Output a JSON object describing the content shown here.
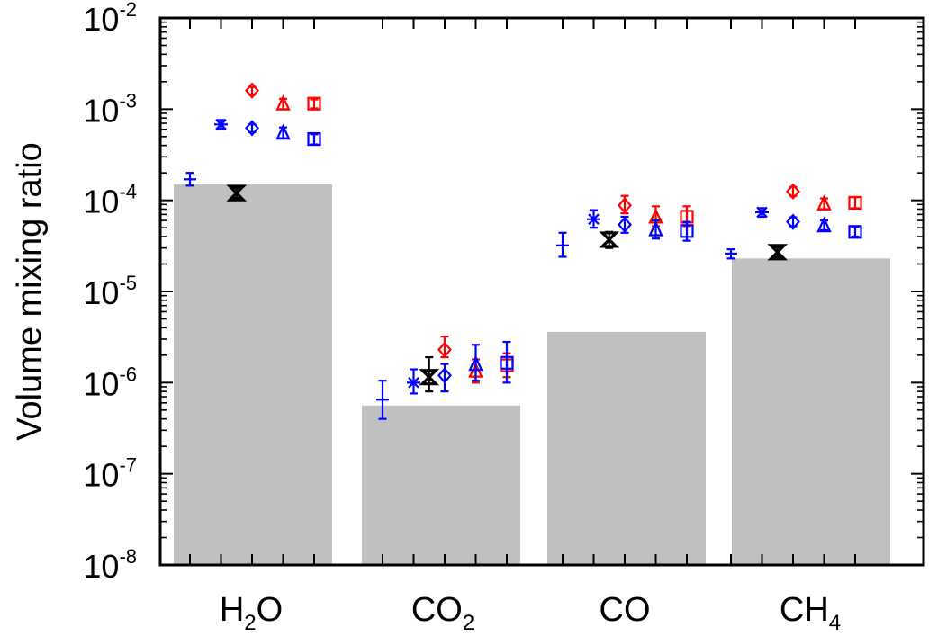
{
  "chart_data": {
    "type": "bar",
    "ylabel": "Volume mixing ratio",
    "yscale": "log",
    "ylim": [
      1e-08,
      0.01
    ],
    "y_ticks": [
      {
        "base": "10",
        "exp": "-8",
        "value": 1e-08
      },
      {
        "base": "10",
        "exp": "-7",
        "value": 1e-07
      },
      {
        "base": "10",
        "exp": "-6",
        "value": 1e-06
      },
      {
        "base": "10",
        "exp": "-5",
        "value": 1e-05
      },
      {
        "base": "10",
        "exp": "-4",
        "value": 0.0001
      },
      {
        "base": "10",
        "exp": "-3",
        "value": 0.001
      },
      {
        "base": "10",
        "exp": "-2",
        "value": 0.01
      }
    ],
    "categories": [
      {
        "name": "H2O",
        "main": "H",
        "sub": "2",
        "tail": "O"
      },
      {
        "name": "CO2",
        "main": "CO",
        "sub": "2",
        "tail": ""
      },
      {
        "name": "CO",
        "main": "CO",
        "sub": "",
        "tail": ""
      },
      {
        "name": "CH4",
        "main": "CH",
        "sub": "4",
        "tail": ""
      }
    ],
    "bars": [
      0.00015,
      5.6e-07,
      3.6e-06,
      2.3e-05
    ],
    "bar_color": "#c0c0c0",
    "markers": [
      {
        "category": 0,
        "offset": 0,
        "symbol": "plus",
        "color": "#0000ff",
        "value": 0.00017,
        "lo": 0.000145,
        "hi": 0.0002
      },
      {
        "category": 0,
        "offset": 1,
        "symbol": "asterisk",
        "color": "#0000ff",
        "value": 0.00068,
        "lo": 0.00061,
        "hi": 0.00076
      },
      {
        "category": 0,
        "offset": 1.5,
        "symbol": "bowtie",
        "color": "#000000",
        "value": 0.00012,
        "lo": 0.000106,
        "hi": 0.000136
      },
      {
        "category": 0,
        "offset": 2,
        "symbol": "diamond",
        "color": "#ff0000",
        "value": 0.0016,
        "lo": 0.00145,
        "hi": 0.00175
      },
      {
        "category": 0,
        "offset": 2,
        "symbol": "diamond",
        "color": "#0000ff",
        "value": 0.00062,
        "lo": 0.00056,
        "hi": 0.00068
      },
      {
        "category": 0,
        "offset": 3,
        "symbol": "triangle",
        "color": "#ff0000",
        "value": 0.00115,
        "lo": 0.001,
        "hi": 0.0013
      },
      {
        "category": 0,
        "offset": 3,
        "symbol": "triangle",
        "color": "#0000ff",
        "value": 0.00055,
        "lo": 0.00048,
        "hi": 0.00063
      },
      {
        "category": 0,
        "offset": 4,
        "symbol": "square",
        "color": "#ff0000",
        "value": 0.00115,
        "lo": 0.00102,
        "hi": 0.00128
      },
      {
        "category": 0,
        "offset": 4,
        "symbol": "square",
        "color": "#0000ff",
        "value": 0.00047,
        "lo": 0.00041,
        "hi": 0.00053
      },
      {
        "category": 1,
        "offset": 0,
        "symbol": "plus",
        "color": "#0000ff",
        "value": 6.5e-07,
        "lo": 4e-07,
        "hi": 1.05e-06
      },
      {
        "category": 1,
        "offset": 1,
        "symbol": "asterisk",
        "color": "#0000ff",
        "value": 1e-06,
        "lo": 7.6e-07,
        "hi": 1.4e-06
      },
      {
        "category": 1,
        "offset": 1.5,
        "symbol": "bowtie",
        "color": "#000000",
        "value": 1.15e-06,
        "lo": 8e-07,
        "hi": 1.9e-06
      },
      {
        "category": 1,
        "offset": 2,
        "symbol": "diamond",
        "color": "#ff0000",
        "value": 2.3e-06,
        "lo": 1.9e-06,
        "hi": 3.2e-06
      },
      {
        "category": 1,
        "offset": 2,
        "symbol": "diamond",
        "color": "#0000ff",
        "value": 1.2e-06,
        "lo": 8e-07,
        "hi": 1.6e-06
      },
      {
        "category": 1,
        "offset": 3,
        "symbol": "triangle",
        "color": "#ff0000",
        "value": 1.35e-06,
        "lo": 1e-06,
        "hi": 1.8e-06
      },
      {
        "category": 1,
        "offset": 3,
        "symbol": "triangle",
        "color": "#0000ff",
        "value": 1.6e-06,
        "lo": 1.05e-06,
        "hi": 2.6e-06
      },
      {
        "category": 1,
        "offset": 4,
        "symbol": "square",
        "color": "#ff0000",
        "value": 1.55e-06,
        "lo": 1.15e-06,
        "hi": 2.1e-06
      },
      {
        "category": 1,
        "offset": 4,
        "symbol": "square",
        "color": "#0000ff",
        "value": 1.65e-06,
        "lo": 1e-06,
        "hi": 2.8e-06
      },
      {
        "category": 2,
        "offset": 0,
        "symbol": "plus",
        "color": "#0000ff",
        "value": 3.2e-05,
        "lo": 2.4e-05,
        "hi": 4.4e-05
      },
      {
        "category": 2,
        "offset": 1,
        "symbol": "asterisk",
        "color": "#0000ff",
        "value": 6.2e-05,
        "lo": 5e-05,
        "hi": 7.8e-05
      },
      {
        "category": 2,
        "offset": 1.5,
        "symbol": "bowtie",
        "color": "#000000",
        "value": 3.7e-05,
        "lo": 3e-05,
        "hi": 4.5e-05
      },
      {
        "category": 2,
        "offset": 2,
        "symbol": "diamond",
        "color": "#ff0000",
        "value": 8.8e-05,
        "lo": 7.2e-05,
        "hi": 0.000112
      },
      {
        "category": 2,
        "offset": 2,
        "symbol": "diamond",
        "color": "#0000ff",
        "value": 5.4e-05,
        "lo": 4.4e-05,
        "hi": 6.6e-05
      },
      {
        "category": 2,
        "offset": 3,
        "symbol": "triangle",
        "color": "#ff0000",
        "value": 6.6e-05,
        "lo": 5.2e-05,
        "hi": 8.6e-05
      },
      {
        "category": 2,
        "offset": 3,
        "symbol": "triangle",
        "color": "#0000ff",
        "value": 4.8e-05,
        "lo": 3.8e-05,
        "hi": 6e-05
      },
      {
        "category": 2,
        "offset": 4,
        "symbol": "square",
        "color": "#ff0000",
        "value": 6.6e-05,
        "lo": 5.2e-05,
        "hi": 8.6e-05
      },
      {
        "category": 2,
        "offset": 4,
        "symbol": "square",
        "color": "#0000ff",
        "value": 4.6e-05,
        "lo": 3.6e-05,
        "hi": 5.8e-05
      },
      {
        "category": 3,
        "offset": 0,
        "symbol": "plus",
        "color": "#0000ff",
        "value": 2.6e-05,
        "lo": 2.3e-05,
        "hi": 2.9e-05
      },
      {
        "category": 3,
        "offset": 1,
        "symbol": "asterisk",
        "color": "#0000ff",
        "value": 7.4e-05,
        "lo": 6.6e-05,
        "hi": 8.2e-05
      },
      {
        "category": 3,
        "offset": 1.5,
        "symbol": "bowtie",
        "color": "#000000",
        "value": 2.7e-05,
        "lo": 2.4e-05,
        "hi": 3.05e-05
      },
      {
        "category": 3,
        "offset": 2,
        "symbol": "diamond",
        "color": "#ff0000",
        "value": 0.000125,
        "lo": 0.000112,
        "hi": 0.00014
      },
      {
        "category": 3,
        "offset": 2,
        "symbol": "diamond",
        "color": "#0000ff",
        "value": 5.8e-05,
        "lo": 5.2e-05,
        "hi": 6.5e-05
      },
      {
        "category": 3,
        "offset": 3,
        "symbol": "triangle",
        "color": "#ff0000",
        "value": 9.2e-05,
        "lo": 8e-05,
        "hi": 0.000105
      },
      {
        "category": 3,
        "offset": 3,
        "symbol": "triangle",
        "color": "#0000ff",
        "value": 5.3e-05,
        "lo": 4.7e-05,
        "hi": 6e-05
      },
      {
        "category": 3,
        "offset": 4,
        "symbol": "square",
        "color": "#ff0000",
        "value": 9.4e-05,
        "lo": 8.2e-05,
        "hi": 0.000108
      },
      {
        "category": 3,
        "offset": 4,
        "symbol": "square",
        "color": "#0000ff",
        "value": 4.5e-05,
        "lo": 4e-05,
        "hi": 5.1e-05
      }
    ]
  }
}
